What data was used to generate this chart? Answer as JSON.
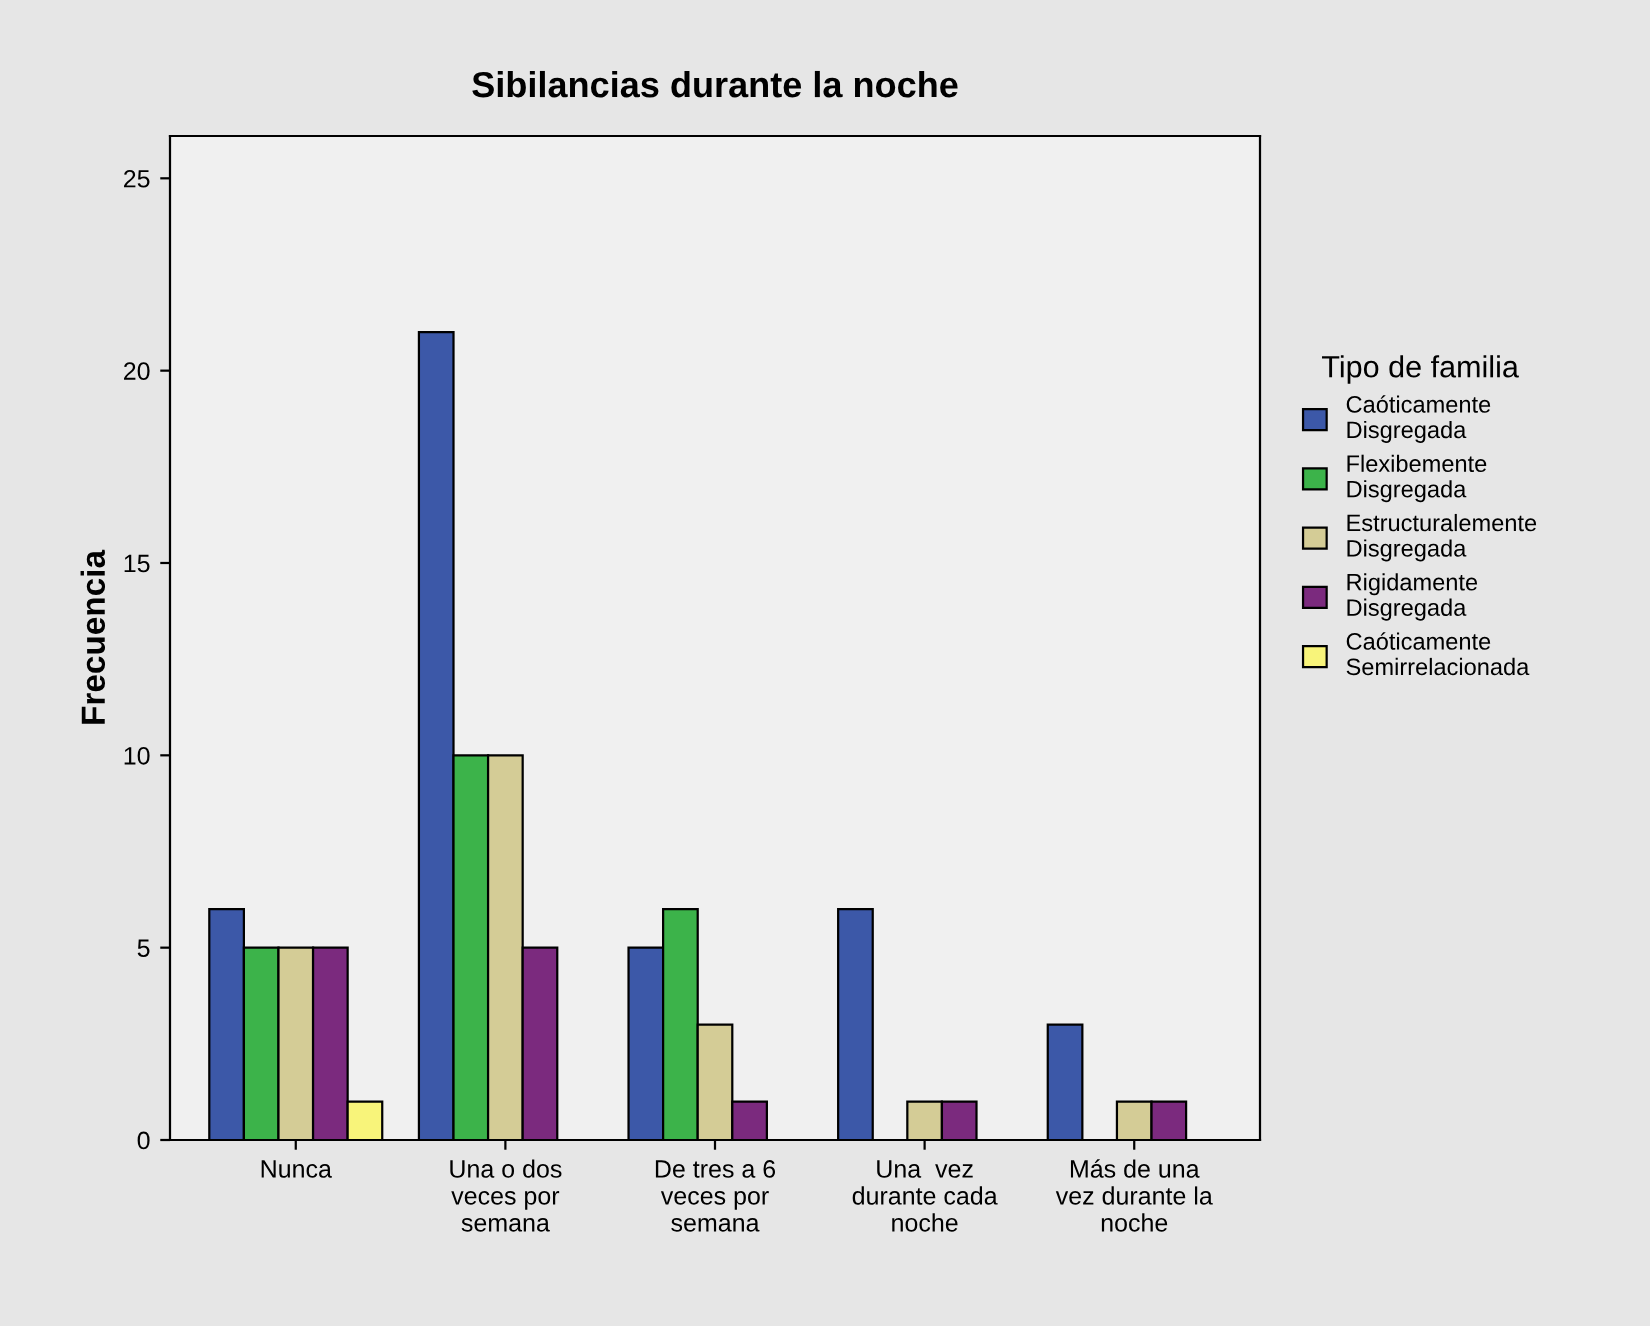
{
  "chart_data": {
    "type": "bar",
    "title": "Sibilancias durante la noche",
    "ylabel": "Frecuencia",
    "legend_title": "Tipo de familia",
    "categories": [
      "Nunca",
      "Una o dos\nveces por\nsemana",
      "De tres a 6\nveces por\nsemana",
      "Una  vez\ndurante cada\nnoche",
      "Más de una\nvez durante la\nnoche"
    ],
    "series": [
      {
        "name": "Caóticamente\nDisgregada",
        "color": "#3c58a8",
        "values": [
          6,
          21,
          5,
          6,
          3
        ]
      },
      {
        "name": "Flexibemente\nDisgregada",
        "color": "#3cb34a",
        "values": [
          5,
          10,
          6,
          0,
          0
        ]
      },
      {
        "name": "Estructuralemente\nDisgregada",
        "color": "#d4cc96",
        "values": [
          5,
          10,
          3,
          1,
          1
        ]
      },
      {
        "name": "Rigidamente\nDisgregada",
        "color": "#7b2a7e",
        "values": [
          5,
          5,
          1,
          1,
          1
        ]
      },
      {
        "name": "Caóticamente\nSemirrelacionada",
        "color": "#f8f47a",
        "values": [
          1,
          0,
          0,
          0,
          0
        ]
      }
    ],
    "ylim": [
      0,
      26.1
    ],
    "yticks": [
      0,
      5,
      10,
      15,
      20,
      25
    ],
    "grid": false,
    "legend": "right"
  }
}
